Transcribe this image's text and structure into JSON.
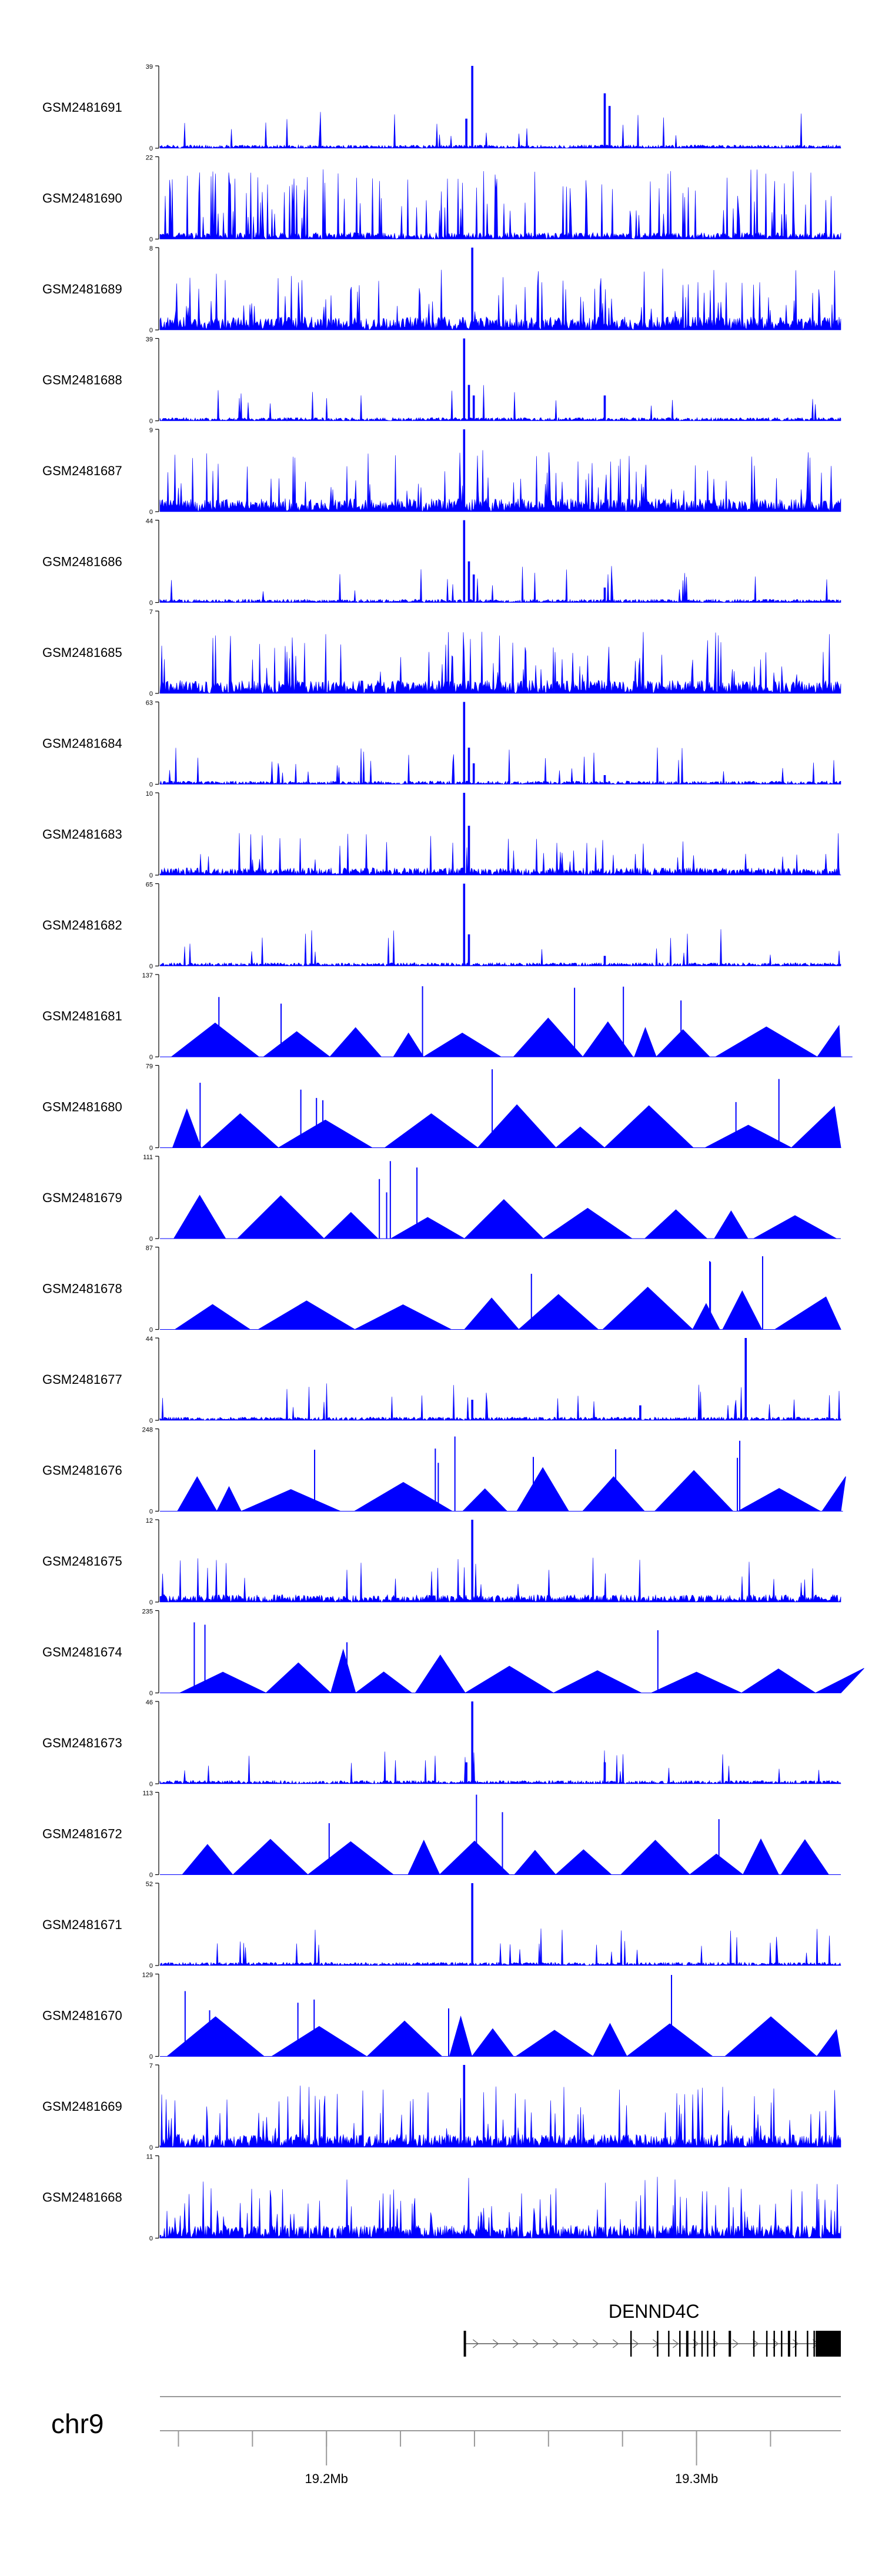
{
  "chart_data": {
    "type": "area",
    "title": "",
    "xlabel": "",
    "ylabel": "",
    "color": "#0000ff",
    "grid": false,
    "xlim": [
      19.155,
      19.339
    ],
    "tracks": [
      {
        "label": "GSM2481691",
        "ymax": 39,
        "pattern": "dense",
        "peaks": [
          {
            "x": 19.2394,
            "y": 39
          },
          {
            "x": 19.2378,
            "y": 14
          },
          {
            "x": 19.2752,
            "y": 26
          },
          {
            "x": 19.2765,
            "y": 20
          }
        ]
      },
      {
        "label": "GSM2481690",
        "ymax": 22,
        "pattern": "spiky_dense",
        "peaks": []
      },
      {
        "label": "GSM2481689",
        "ymax": 8,
        "pattern": "dense_high",
        "peaks": [
          {
            "x": 19.2394,
            "y": 8
          }
        ]
      },
      {
        "label": "GSM2481688",
        "ymax": 39,
        "pattern": "dense",
        "peaks": [
          {
            "x": 19.2372,
            "y": 39
          },
          {
            "x": 19.2385,
            "y": 17
          },
          {
            "x": 19.2398,
            "y": 12
          },
          {
            "x": 19.2752,
            "y": 12
          }
        ]
      },
      {
        "label": "GSM2481687",
        "ymax": 9,
        "pattern": "dense_high",
        "peaks": [
          {
            "x": 19.2372,
            "y": 9
          }
        ]
      },
      {
        "label": "GSM2481686",
        "ymax": 44,
        "pattern": "dense",
        "peaks": [
          {
            "x": 19.2372,
            "y": 44
          },
          {
            "x": 19.2385,
            "y": 22
          },
          {
            "x": 19.2398,
            "y": 15
          },
          {
            "x": 19.2752,
            "y": 8
          }
        ]
      },
      {
        "label": "GSM2481685",
        "ymax": 7,
        "pattern": "dense_high",
        "peaks": []
      },
      {
        "label": "GSM2481684",
        "ymax": 63,
        "pattern": "dense",
        "peaks": [
          {
            "x": 19.2372,
            "y": 63
          },
          {
            "x": 19.2385,
            "y": 28
          },
          {
            "x": 19.2398,
            "y": 16
          },
          {
            "x": 19.2752,
            "y": 7
          }
        ]
      },
      {
        "label": "GSM2481683",
        "ymax": 10,
        "pattern": "dense_mid",
        "peaks": [
          {
            "x": 19.2372,
            "y": 10
          },
          {
            "x": 19.2385,
            "y": 6
          }
        ]
      },
      {
        "label": "GSM2481682",
        "ymax": 65,
        "pattern": "dense",
        "peaks": [
          {
            "x": 19.2372,
            "y": 65
          },
          {
            "x": 19.2385,
            "y": 25
          },
          {
            "x": 19.2752,
            "y": 8
          }
        ]
      },
      {
        "label": "GSM2481681",
        "ymax": 137,
        "pattern": "sparse",
        "peaks": []
      },
      {
        "label": "GSM2481680",
        "ymax": 79,
        "pattern": "sparse",
        "peaks": []
      },
      {
        "label": "GSM2481679",
        "ymax": 111,
        "pattern": "sparse",
        "peaks": []
      },
      {
        "label": "GSM2481678",
        "ymax": 87,
        "pattern": "sparse",
        "peaks": []
      },
      {
        "label": "GSM2481677",
        "ymax": 44,
        "pattern": "dense",
        "peaks": [
          {
            "x": 19.2394,
            "y": 11
          },
          {
            "x": 19.2848,
            "y": 8
          },
          {
            "x": 19.3133,
            "y": 44
          }
        ]
      },
      {
        "label": "GSM2481676",
        "ymax": 248,
        "pattern": "sparse",
        "peaks": []
      },
      {
        "label": "GSM2481675",
        "ymax": 12,
        "pattern": "dense_mid",
        "peaks": [
          {
            "x": 19.2394,
            "y": 12
          }
        ]
      },
      {
        "label": "GSM2481674",
        "ymax": 235,
        "pattern": "sparse",
        "peaks": []
      },
      {
        "label": "GSM2481673",
        "ymax": 46,
        "pattern": "dense",
        "peaks": [
          {
            "x": 19.2394,
            "y": 46
          },
          {
            "x": 19.2378,
            "y": 12
          },
          {
            "x": 19.2752,
            "y": 12
          }
        ]
      },
      {
        "label": "GSM2481672",
        "ymax": 113,
        "pattern": "sparse",
        "peaks": []
      },
      {
        "label": "GSM2481671",
        "ymax": 52,
        "pattern": "dense",
        "peaks": [
          {
            "x": 19.2394,
            "y": 52
          }
        ]
      },
      {
        "label": "GSM2481670",
        "ymax": 129,
        "pattern": "sparse",
        "peaks": []
      },
      {
        "label": "GSM2481669",
        "ymax": 7,
        "pattern": "dense_high",
        "peaks": [
          {
            "x": 19.2372,
            "y": 7
          }
        ]
      },
      {
        "label": "GSM2481668",
        "ymax": 11,
        "pattern": "dense_high",
        "peaks": []
      }
    ],
    "gene": {
      "name": "DENND4C",
      "start": 19.2372,
      "end": 19.339,
      "strand": "+",
      "exons": [
        19.2374,
        19.2823,
        19.2895,
        19.2925,
        19.2955,
        19.2975,
        19.2995,
        19.3015,
        19.303,
        19.3048,
        19.309,
        19.3155,
        19.319,
        19.321,
        19.323,
        19.325,
        19.3268,
        19.33,
        19.3318,
        19.334,
        19.336,
        19.338
      ],
      "utr": [
        19.3322,
        19.3385
      ]
    },
    "chromosome": "chr9",
    "axis": {
      "major_ticks": [
        {
          "x": 19.2,
          "label": "19.2Mb"
        },
        {
          "x": 19.3,
          "label": "19.3Mb"
        }
      ],
      "minor_step": 0.02
    }
  }
}
